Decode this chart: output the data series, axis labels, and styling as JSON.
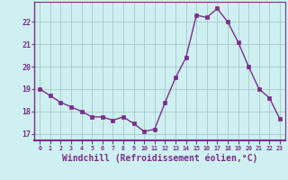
{
  "x": [
    0,
    1,
    2,
    3,
    4,
    5,
    6,
    7,
    8,
    9,
    10,
    11,
    12,
    13,
    14,
    15,
    16,
    17,
    18,
    19,
    20,
    21,
    22,
    23
  ],
  "y": [
    19.0,
    18.7,
    18.4,
    18.2,
    18.0,
    17.75,
    17.75,
    17.6,
    17.75,
    17.45,
    17.1,
    17.2,
    18.4,
    19.5,
    20.4,
    22.3,
    22.2,
    22.6,
    22.0,
    21.1,
    20.0,
    19.0,
    18.6,
    17.65
  ],
  "line_color": "#7b2d8b",
  "marker": "s",
  "markersize": 2.5,
  "linewidth": 1.0,
  "xlabel": "Windchill (Refroidissement éolien,°C)",
  "xlabel_fontsize": 7,
  "ytick_labels": [
    "17",
    "18",
    "19",
    "20",
    "21",
    "22"
  ],
  "ytick_vals": [
    17,
    18,
    19,
    20,
    21,
    22
  ],
  "xtick_vals": [
    0,
    1,
    2,
    3,
    4,
    5,
    6,
    7,
    8,
    9,
    10,
    11,
    12,
    13,
    14,
    15,
    16,
    17,
    18,
    19,
    20,
    21,
    22,
    23
  ],
  "ylim": [
    16.7,
    22.9
  ],
  "xlim": [
    -0.5,
    23.5
  ],
  "bg_color": "#cff0f0",
  "grid_color": "#a8c8c8",
  "tick_color": "#7b2d8b",
  "spine_color": "#7b2d8b",
  "fig_bg": "#cff0f0"
}
